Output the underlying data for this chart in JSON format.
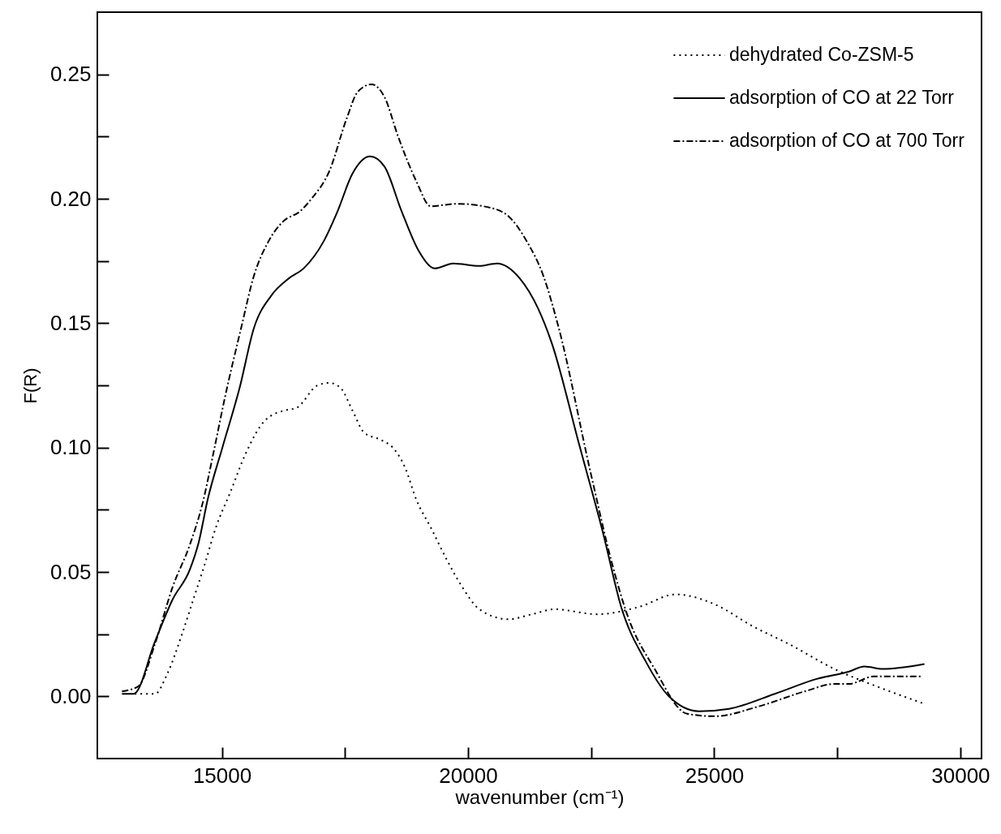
{
  "chart_data": {
    "type": "line",
    "xlabel": "wavenumber (cm⁻¹)",
    "ylabel": "F(R)",
    "xlim": [
      12470,
      30430
    ],
    "ylim": [
      -0.025,
      0.275
    ],
    "xticks": [
      15000,
      {
        "value": 17500,
        "label": null
      },
      20000,
      {
        "value": 22500,
        "label": null
      },
      25000,
      {
        "value": 27500,
        "label": null
      },
      30000
    ],
    "yticks": [
      {
        "value": 0,
        "label": "0.00"
      },
      {
        "value": 0.025,
        "label": null
      },
      0.05,
      {
        "value": 0.075,
        "label": null
      },
      {
        "value": 0.1,
        "label": "0.10"
      },
      {
        "value": 0.125,
        "label": null
      },
      0.15,
      {
        "value": 0.175,
        "label": null
      },
      {
        "value": 0.2,
        "label": "0.20"
      },
      {
        "value": 0.225,
        "label": null
      },
      0.25
    ],
    "grid": false,
    "legend": "top right",
    "series": [
      {
        "name": "dehydrated Co-ZSM-5",
        "color": "#000000",
        "line_style": "dotted",
        "x": [
          13230,
          13640,
          13890,
          14190,
          14420,
          14650,
          14880,
          15170,
          15470,
          15880,
          16290,
          16520,
          16940,
          17180,
          17410,
          17650,
          17890,
          18240,
          18470,
          18720,
          18950,
          19240,
          19540,
          19880,
          20230,
          20820,
          21300,
          21760,
          22620,
          23480,
          24220,
          25010,
          25800,
          26520,
          27440,
          28300,
          29270
        ],
        "values": [
          0.001,
          0.001,
          0.009,
          0.025,
          0.039,
          0.053,
          0.068,
          0.082,
          0.097,
          0.111,
          0.115,
          0.116,
          0.125,
          0.126,
          0.124,
          0.115,
          0.106,
          0.103,
          0.1,
          0.092,
          0.079,
          0.068,
          0.056,
          0.044,
          0.035,
          0.031,
          0.033,
          0.035,
          0.033,
          0.036,
          0.041,
          0.037,
          0.028,
          0.021,
          0.011,
          0.004,
          -0.003
        ]
      },
      {
        "name": "adsorption of CO at 22 Torr",
        "color": "#000000",
        "line_style": "solid",
        "x": [
          12970,
          13210,
          13640,
          14000,
          14350,
          14530,
          14710,
          15010,
          15360,
          15650,
          16000,
          16360,
          16660,
          17070,
          17350,
          17650,
          18010,
          18300,
          18650,
          19000,
          19330,
          19700,
          20230,
          20590,
          21050,
          21420,
          21700,
          22260,
          22750,
          23110,
          23610,
          24080,
          24690,
          25300,
          26230,
          27080,
          27740,
          28050,
          28420,
          29270
        ],
        "values": [
          0.001,
          0.001,
          0.022,
          0.039,
          0.051,
          0.062,
          0.079,
          0.1,
          0.124,
          0.148,
          0.161,
          0.168,
          0.172,
          0.183,
          0.195,
          0.21,
          0.217,
          0.213,
          0.195,
          0.179,
          0.172,
          0.174,
          0.173,
          0.174,
          0.168,
          0.156,
          0.142,
          0.101,
          0.065,
          0.036,
          0.014,
          0.0,
          -0.006,
          -0.005,
          0.001,
          0.007,
          0.01,
          0.012,
          0.011,
          0.013
        ]
      },
      {
        "name": "adsorption of CO at 700 Torr",
        "color": "#000000",
        "line_style": "dashed",
        "x": [
          12970,
          13300,
          13640,
          14000,
          14350,
          14600,
          14830,
          15060,
          15390,
          15650,
          15950,
          16250,
          16590,
          16820,
          17180,
          17530,
          17760,
          18040,
          18300,
          18580,
          18950,
          19240,
          19770,
          20530,
          20820,
          21190,
          21530,
          21830,
          22500,
          22930,
          23230,
          23790,
          24450,
          25010,
          25910,
          26840,
          27440,
          27740,
          28240,
          29210
        ],
        "values": [
          0.002,
          0.004,
          0.021,
          0.044,
          0.061,
          0.077,
          0.098,
          0.12,
          0.148,
          0.169,
          0.183,
          0.191,
          0.195,
          0.2,
          0.211,
          0.232,
          0.243,
          0.246,
          0.241,
          0.225,
          0.207,
          0.197,
          0.198,
          0.196,
          0.193,
          0.183,
          0.169,
          0.149,
          0.089,
          0.053,
          0.033,
          0.011,
          -0.007,
          -0.008,
          -0.004,
          0.002,
          0.005,
          0.005,
          0.008,
          0.008
        ]
      }
    ]
  }
}
